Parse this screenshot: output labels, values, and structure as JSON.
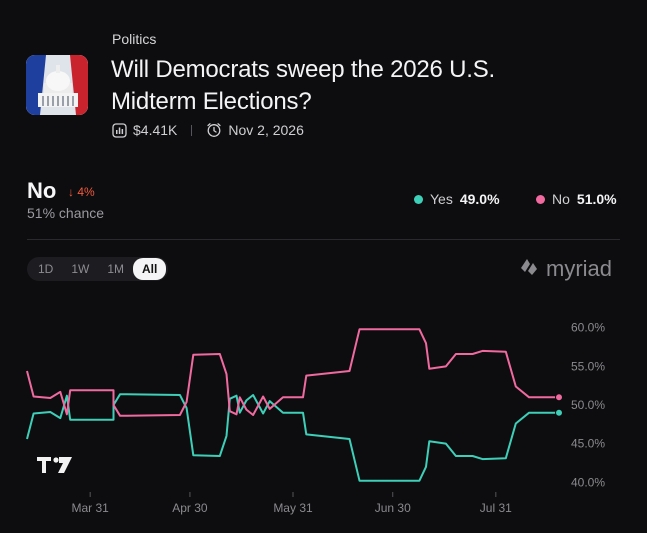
{
  "market": {
    "category": "Politics",
    "title": "Will Democrats sweep the 2026 U.S. Midterm Elections?",
    "volume": "$4.41K",
    "end_date": "Nov 2, 2026"
  },
  "summary": {
    "outcome": "No",
    "change": "↓ 4%",
    "chance": "51% chance"
  },
  "legend": {
    "yes_label": "Yes",
    "yes_value": "49.0%",
    "no_label": "No",
    "no_value": "51.0%"
  },
  "ranges": [
    "1D",
    "1W",
    "1M",
    "All"
  ],
  "active_range": "All",
  "brand": "myriad",
  "colors": {
    "yes": "#3ecfb8",
    "no": "#f06aa0",
    "down": "#f05a3c",
    "background": "#0d0d0f"
  },
  "icons": {
    "volume": "bar-chart-icon",
    "end_date": "alarm-clock-icon",
    "brand": "myriad-logo-icon",
    "tv": "tradingview-logo"
  },
  "chart_data": {
    "type": "line",
    "x_ticks": [
      "Mar 31",
      "Apr 30",
      "May 31",
      "Jun 30",
      "Jul 31"
    ],
    "y_ticks": [
      "60.0%",
      "55.0%",
      "50.0%",
      "45.0%",
      "40.0%"
    ],
    "y_axis_position": "right",
    "ylim": [
      39,
      61
    ],
    "xlim": [
      "2026-03-12",
      "2026-08-19"
    ],
    "grid": false,
    "series": [
      {
        "name": "Yes",
        "color": "#3ecfb8",
        "points": [
          [
            "2026-03-12",
            45.6
          ],
          [
            "2026-03-14",
            48.9
          ],
          [
            "2026-03-19",
            49.1
          ],
          [
            "2026-03-22",
            48.3
          ],
          [
            "2026-03-24",
            51.2
          ],
          [
            "2026-03-25",
            48.1
          ],
          [
            "2026-04-07",
            48.1
          ],
          [
            "2026-04-07",
            50.0
          ],
          [
            "2026-04-09",
            51.4
          ],
          [
            "2026-04-27",
            51.3
          ],
          [
            "2026-04-29",
            49.6
          ],
          [
            "2026-05-01",
            43.5
          ],
          [
            "2026-05-09",
            43.4
          ],
          [
            "2026-05-11",
            46.0
          ],
          [
            "2026-05-12",
            50.8
          ],
          [
            "2026-05-14",
            51.2
          ],
          [
            "2026-05-15",
            49.0
          ],
          [
            "2026-05-17",
            50.6
          ],
          [
            "2026-05-19",
            51.3
          ],
          [
            "2026-05-22",
            48.9
          ],
          [
            "2026-05-24",
            50.5
          ],
          [
            "2026-05-28",
            49.0
          ],
          [
            "2026-06-03",
            49.0
          ],
          [
            "2026-06-04",
            46.2
          ],
          [
            "2026-06-17",
            45.6
          ],
          [
            "2026-06-20",
            40.2
          ],
          [
            "2026-07-08",
            40.2
          ],
          [
            "2026-07-10",
            42.0
          ],
          [
            "2026-07-11",
            45.3
          ],
          [
            "2026-07-16",
            45.0
          ],
          [
            "2026-07-19",
            43.4
          ],
          [
            "2026-07-24",
            43.4
          ],
          [
            "2026-07-27",
            43.0
          ],
          [
            "2026-08-03",
            43.1
          ],
          [
            "2026-08-06",
            47.6
          ],
          [
            "2026-08-10",
            49.0
          ],
          [
            "2026-08-19",
            49.0
          ]
        ]
      },
      {
        "name": "No",
        "color": "#f06aa0",
        "points": [
          [
            "2026-03-12",
            54.4
          ],
          [
            "2026-03-14",
            51.1
          ],
          [
            "2026-03-19",
            50.9
          ],
          [
            "2026-03-22",
            51.7
          ],
          [
            "2026-03-24",
            48.8
          ],
          [
            "2026-03-25",
            51.9
          ],
          [
            "2026-04-07",
            51.9
          ],
          [
            "2026-04-07",
            50.0
          ],
          [
            "2026-04-09",
            48.6
          ],
          [
            "2026-04-27",
            48.7
          ],
          [
            "2026-04-29",
            50.4
          ],
          [
            "2026-05-01",
            56.5
          ],
          [
            "2026-05-09",
            56.6
          ],
          [
            "2026-05-11",
            54.0
          ],
          [
            "2026-05-12",
            49.2
          ],
          [
            "2026-05-14",
            48.8
          ],
          [
            "2026-05-15",
            51.0
          ],
          [
            "2026-05-17",
            49.4
          ],
          [
            "2026-05-19",
            48.7
          ],
          [
            "2026-05-22",
            51.1
          ],
          [
            "2026-05-24",
            49.5
          ],
          [
            "2026-05-28",
            51.0
          ],
          [
            "2026-06-03",
            51.0
          ],
          [
            "2026-06-04",
            53.8
          ],
          [
            "2026-06-17",
            54.4
          ],
          [
            "2026-06-20",
            59.8
          ],
          [
            "2026-07-08",
            59.8
          ],
          [
            "2026-07-10",
            58.0
          ],
          [
            "2026-07-11",
            54.7
          ],
          [
            "2026-07-16",
            55.0
          ],
          [
            "2026-07-19",
            56.6
          ],
          [
            "2026-07-24",
            56.6
          ],
          [
            "2026-07-27",
            57.0
          ],
          [
            "2026-08-03",
            56.9
          ],
          [
            "2026-08-06",
            52.4
          ],
          [
            "2026-08-10",
            51.0
          ],
          [
            "2026-08-19",
            51.0
          ]
        ]
      }
    ]
  }
}
